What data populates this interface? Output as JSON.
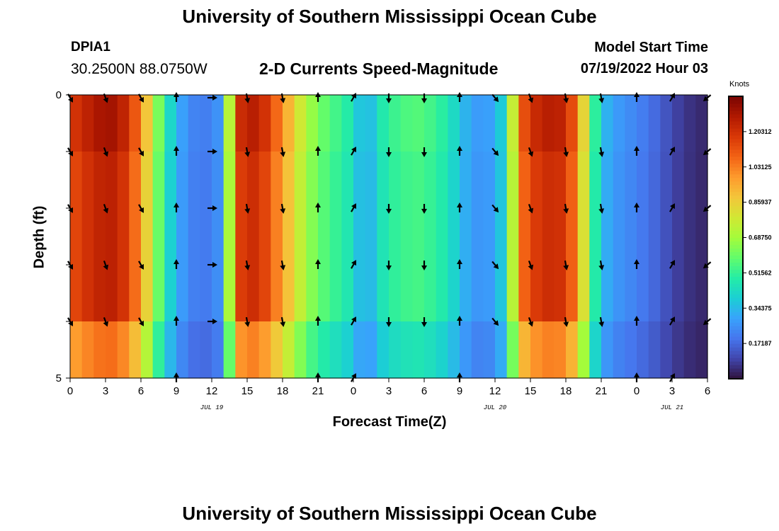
{
  "header": {
    "title": "University of Southern Mississippi Ocean Cube",
    "station_id": "DPIA1",
    "coordinates": "30.2500N  88.0750W",
    "subtitle": "2-D Currents Speed-Magnitude",
    "model_start_label": "Model Start Time",
    "model_start_value": "07/19/2022 Hour 03"
  },
  "footer": {
    "repeated_title": "University of Southern Mississippi Ocean Cube"
  },
  "chart_data": {
    "type": "heatmap",
    "title": "2-D Currents Speed-Magnitude",
    "xlabel": "Forecast Time(Z)",
    "ylabel": "Depth (ft)",
    "x_ticks": [
      "0",
      "3",
      "6",
      "9",
      "12",
      "15",
      "18",
      "21",
      "0",
      "3",
      "6",
      "9",
      "12",
      "15",
      "18",
      "21",
      "0",
      "3",
      "6"
    ],
    "x_range_hours": [
      0,
      54
    ],
    "y_ticks": [
      "0",
      "5"
    ],
    "y_range": [
      0,
      5
    ],
    "date_labels": [
      {
        "text": "JUL 19",
        "hour": 12
      },
      {
        "text": "JUL 20",
        "hour": 36
      },
      {
        "text": "JUL 21",
        "hour": 51
      }
    ],
    "colorbar": {
      "units": "Knots",
      "min": 0.0,
      "max": 1.375,
      "tick_values": [
        0.17187,
        0.34375,
        0.51562,
        0.6875,
        0.85937,
        1.03125,
        1.20312
      ],
      "tick_labels": [
        "0.17187",
        "0.34375",
        "0.51562",
        "0.68750",
        "0.85937",
        "1.03125",
        "1.20312"
      ],
      "colors": [
        "#30123b",
        "#4145ab",
        "#4675ed",
        "#39a2fc",
        "#1bcfd4",
        "#24eca6",
        "#61fc6c",
        "#a4fc3b",
        "#d1e834",
        "#f3c63a",
        "#fe9b2d",
        "#f36315",
        "#d93807",
        "#b11901",
        "#7a0403"
      ]
    },
    "depth_levels": [
      "0-1",
      "1-2",
      "2-3",
      "3-4",
      "4-5"
    ],
    "speed_profile_hours": [
      0,
      1,
      2,
      3,
      4,
      5,
      6,
      7,
      8,
      9,
      10,
      11,
      12,
      13,
      14,
      15,
      16,
      17,
      18,
      19,
      20,
      21,
      22,
      23,
      24,
      25,
      26,
      27,
      28,
      29,
      30,
      31,
      32,
      33,
      34,
      35,
      36,
      37,
      38,
      39,
      40,
      41,
      42,
      43,
      44,
      45,
      46,
      47,
      48,
      49,
      50,
      51,
      52,
      53,
      54
    ],
    "speed_profile_knots": [
      1.12,
      1.18,
      1.22,
      1.26,
      1.24,
      1.15,
      0.98,
      0.72,
      0.48,
      0.32,
      0.24,
      0.2,
      0.22,
      0.28,
      1.12,
      1.22,
      1.2,
      1.1,
      0.96,
      0.82,
      0.68,
      0.6,
      0.54,
      0.5,
      0.44,
      0.28,
      0.42,
      0.5,
      0.52,
      0.55,
      0.54,
      0.5,
      0.46,
      0.36,
      0.28,
      0.26,
      0.3,
      0.44,
      1.02,
      1.15,
      1.2,
      1.22,
      1.18,
      1.0,
      0.62,
      0.35,
      0.28,
      0.25,
      0.22,
      0.19,
      0.15,
      0.1,
      0.07,
      0.05,
      0.04
    ],
    "bottom_layer_scale": 0.85,
    "shallow_layer_scale": 1.04,
    "direction_arrow_hours": [
      0,
      3,
      6,
      9,
      12,
      15,
      18,
      21,
      24,
      27,
      30,
      33,
      36,
      39,
      42,
      45,
      48,
      51,
      54
    ],
    "direction_arrow_depths": [
      0,
      1,
      2,
      3,
      4,
      5
    ],
    "direction_degrees_by_hour": [
      150,
      160,
      150,
      0,
      90,
      170,
      170,
      0,
      30,
      180,
      180,
      0,
      140,
      160,
      170,
      170,
      0,
      30,
      230
    ]
  }
}
